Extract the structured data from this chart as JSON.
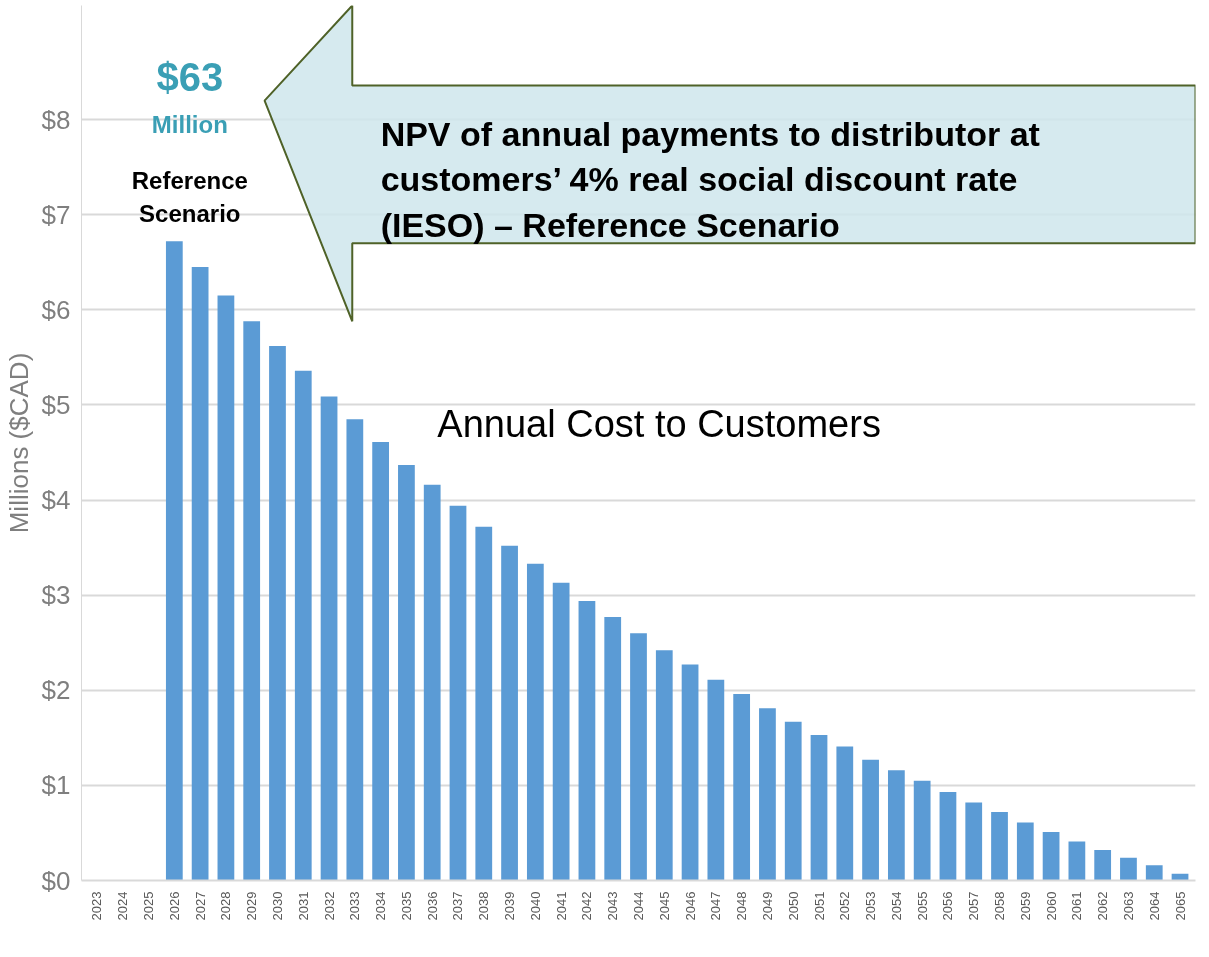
{
  "chart_data": {
    "type": "bar",
    "ylabel": "Millions ($CAD)",
    "categories": [
      "2023",
      "2024",
      "2025",
      "2026",
      "2027",
      "2028",
      "2029",
      "2030",
      "2031",
      "2032",
      "2033",
      "2034",
      "2035",
      "2036",
      "2037",
      "2038",
      "2039",
      "2040",
      "2041",
      "2042",
      "2043",
      "2044",
      "2045",
      "2046",
      "2047",
      "2048",
      "2049",
      "2050",
      "2051",
      "2052",
      "2053",
      "2054",
      "2055",
      "2056",
      "2057",
      "2058",
      "2059",
      "2060",
      "2061",
      "2062",
      "2063",
      "2064",
      "2065"
    ],
    "values": [
      0,
      0,
      0,
      6.72,
      6.45,
      6.15,
      5.88,
      5.62,
      5.36,
      5.09,
      4.85,
      4.61,
      4.37,
      4.16,
      3.94,
      3.72,
      3.52,
      3.33,
      3.13,
      2.94,
      2.77,
      2.6,
      2.42,
      2.27,
      2.11,
      1.96,
      1.81,
      1.67,
      1.53,
      1.41,
      1.27,
      1.16,
      1.05,
      0.93,
      0.82,
      0.72,
      0.61,
      0.51,
      0.41,
      0.32,
      0.24,
      0.16,
      0.07
    ],
    "color": "#5b9bd5",
    "ylim": [
      0,
      9.2
    ],
    "yticks": [
      {
        "value": 0,
        "label": "$0"
      },
      {
        "value": 1,
        "label": "$1"
      },
      {
        "value": 2,
        "label": "$2"
      },
      {
        "value": 3,
        "label": "$3"
      },
      {
        "value": 4,
        "label": "$4"
      },
      {
        "value": 5,
        "label": "$5"
      },
      {
        "value": 6,
        "label": "$6"
      },
      {
        "value": 7,
        "label": "$7"
      },
      {
        "value": 8,
        "label": "$8"
      }
    ],
    "grid": "y",
    "annotations": [
      "$63",
      "Million",
      "Reference\nScenario",
      "NPV of annual payments to distributor at\ncustomers’ 4% real social discount rate\n(IESO) – Reference Scenario",
      "Annual Cost to Customers"
    ]
  }
}
